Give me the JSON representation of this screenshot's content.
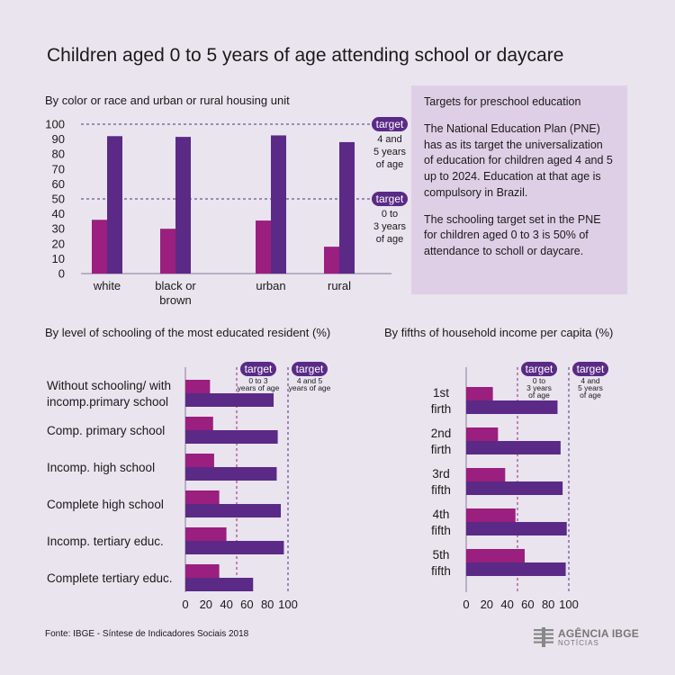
{
  "title": "Children aged 0 to 5 years of age attending school or daycare",
  "info": {
    "heading": "Targets for preschool education",
    "p1": "The National Education Plan (PNE) has as its target the universalization of education for children aged 4 and 5 up to 2024. Education at that age is compulsory in Brazil.",
    "p2": "The schooling target set in the PNE for children aged 0 to 3 is 50% of attendance to scholl or daycare."
  },
  "source": "Fonte: IBGE - Síntese de Indicadores Sociais 2018",
  "logo": {
    "brand": "AGÊNCIA IBGE",
    "sub": "NOTÍCIAS"
  },
  "colors": {
    "age_0_3": "#9a1f7e",
    "age_4_5": "#5a2a86",
    "target_badge": "#5a2a86",
    "background": "#e9e4ee",
    "infobox": "#dfcfe6"
  },
  "chart_data": [
    {
      "type": "bar",
      "title": "By color or race and urban or rural housing unit",
      "categories": [
        "white",
        "black or brown",
        "urban",
        "rural"
      ],
      "series": [
        {
          "values": [
            36,
            30,
            35.5,
            18
          ]
        },
        {
          "values": [
            92,
            91.5,
            92.5,
            88
          ]
        }
      ],
      "ylim": [
        0,
        100
      ],
      "yticks": [
        0,
        10,
        20,
        30,
        40,
        50,
        60,
        70,
        80,
        90,
        100
      ],
      "targets": [
        {
          "value": 100,
          "badge": "target",
          "label": "4 and 5 years of age"
        },
        {
          "value": 50,
          "badge": "target",
          "label": "0 to 3 years of age"
        }
      ]
    },
    {
      "type": "bar",
      "orientation": "horizontal",
      "title": "By level of schooling of the most educated resident (%)",
      "categories": [
        "Without schooling/ with incomp.primary school",
        "Comp. primary school",
        "Incomp. high school",
        "Complete high school",
        "Incomp. tertiary educ.",
        "Complete tertiary educ."
      ],
      "series": [
        {
          "values": [
            24,
            27,
            28,
            33,
            40,
            33
          ]
        },
        {
          "values": [
            86,
            90,
            89,
            93,
            96,
            66
          ]
        }
      ],
      "xlim": [
        0,
        100
      ],
      "xticks": [
        0,
        20,
        40,
        60,
        80,
        100
      ],
      "targets": [
        {
          "value": 50,
          "badge": "target",
          "label": "0 to 3 years of age"
        },
        {
          "value": 100,
          "badge": "target",
          "label": "4 and 5 years of age"
        }
      ]
    },
    {
      "type": "bar",
      "orientation": "horizontal",
      "title": "By fifths of household income per capita (%)",
      "categories": [
        "1st firth",
        "2nd firth",
        "3rd fifth",
        "4th fifth",
        "5th fifth"
      ],
      "series": [
        {
          "values": [
            26,
            31,
            38,
            48,
            57
          ]
        },
        {
          "values": [
            89,
            92,
            94,
            98,
            97
          ]
        }
      ],
      "xlim": [
        0,
        100
      ],
      "xticks": [
        0,
        20,
        40,
        60,
        80,
        100
      ],
      "targets": [
        {
          "value": 50,
          "badge": "target",
          "label": "0 to 3 years of age"
        },
        {
          "value": 100,
          "badge": "target",
          "label": "4 and 5 years of age"
        }
      ]
    }
  ]
}
